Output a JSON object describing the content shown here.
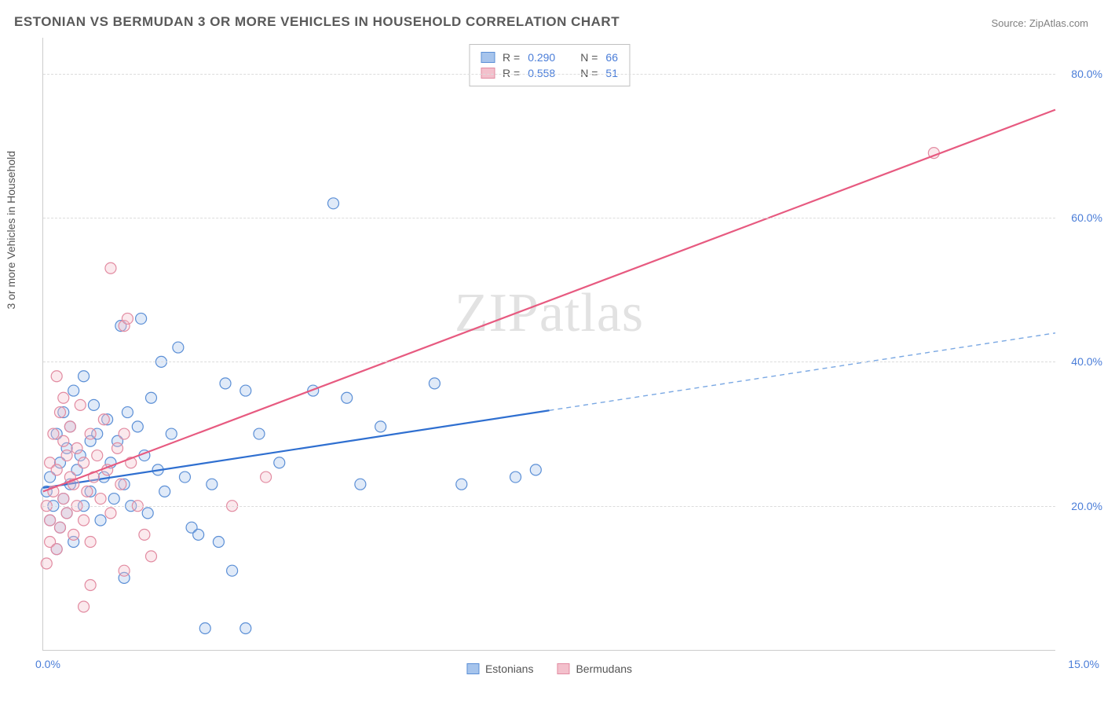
{
  "title": "ESTONIAN VS BERMUDAN 3 OR MORE VEHICLES IN HOUSEHOLD CORRELATION CHART",
  "source_label": "Source: ZipAtlas.com",
  "y_axis_title": "3 or more Vehicles in Household",
  "watermark": "ZIPatlas",
  "chart": {
    "type": "scatter",
    "background_color": "#ffffff",
    "grid_color": "#dcdcdc",
    "axis_line_color": "#cccccc",
    "tick_label_color": "#4a7dd8",
    "tick_fontsize": 14,
    "xlim": [
      0,
      15
    ],
    "ylim": [
      0,
      85
    ],
    "x_ticks": [
      {
        "value": 0,
        "label": "0.0%"
      },
      {
        "value": 15,
        "label": "15.0%"
      }
    ],
    "y_ticks": [
      {
        "value": 20,
        "label": "20.0%"
      },
      {
        "value": 40,
        "label": "40.0%"
      },
      {
        "value": 60,
        "label": "60.0%"
      },
      {
        "value": 80,
        "label": "80.0%"
      }
    ],
    "marker_radius": 7,
    "marker_stroke_width": 1.2,
    "marker_fill_opacity": 0.35,
    "series": [
      {
        "id": "estonians",
        "label": "Estonians",
        "color_stroke": "#5b8fd6",
        "color_fill": "#a6c4ec",
        "R": "0.290",
        "N": "66",
        "regression": {
          "x1": 0,
          "y1": 22.5,
          "x2": 15,
          "y2": 44.0,
          "solid_until_x": 7.5,
          "solid_color": "#2f6fd0",
          "solid_width": 2.2,
          "dash_color": "#7aa8e3",
          "dash_width": 1.4,
          "dash_pattern": "6,5"
        },
        "points": [
          [
            0.05,
            22
          ],
          [
            0.1,
            18
          ],
          [
            0.1,
            24
          ],
          [
            0.15,
            20
          ],
          [
            0.2,
            30
          ],
          [
            0.2,
            14
          ],
          [
            0.25,
            26
          ],
          [
            0.25,
            17
          ],
          [
            0.3,
            33
          ],
          [
            0.3,
            21
          ],
          [
            0.35,
            19
          ],
          [
            0.35,
            28
          ],
          [
            0.4,
            31
          ],
          [
            0.4,
            23
          ],
          [
            0.45,
            15
          ],
          [
            0.45,
            36
          ],
          [
            0.5,
            25
          ],
          [
            0.55,
            27
          ],
          [
            0.6,
            20
          ],
          [
            0.6,
            38
          ],
          [
            0.7,
            29
          ],
          [
            0.7,
            22
          ],
          [
            0.75,
            34
          ],
          [
            0.8,
            30
          ],
          [
            0.85,
            18
          ],
          [
            0.9,
            24
          ],
          [
            0.95,
            32
          ],
          [
            1.0,
            26
          ],
          [
            1.05,
            21
          ],
          [
            1.1,
            29
          ],
          [
            1.15,
            45
          ],
          [
            1.2,
            23
          ],
          [
            1.2,
            10
          ],
          [
            1.25,
            33
          ],
          [
            1.3,
            20
          ],
          [
            1.4,
            31
          ],
          [
            1.45,
            46
          ],
          [
            1.5,
            27
          ],
          [
            1.55,
            19
          ],
          [
            1.6,
            35
          ],
          [
            1.7,
            25
          ],
          [
            1.75,
            40
          ],
          [
            1.8,
            22
          ],
          [
            1.9,
            30
          ],
          [
            2.0,
            42
          ],
          [
            2.1,
            24
          ],
          [
            2.2,
            17
          ],
          [
            2.3,
            16
          ],
          [
            2.4,
            3
          ],
          [
            2.5,
            23
          ],
          [
            2.6,
            15
          ],
          [
            2.7,
            37
          ],
          [
            2.8,
            11
          ],
          [
            3.0,
            3
          ],
          [
            3.0,
            36
          ],
          [
            3.2,
            30
          ],
          [
            3.5,
            26
          ],
          [
            4.0,
            36
          ],
          [
            4.3,
            62
          ],
          [
            4.5,
            35
          ],
          [
            4.7,
            23
          ],
          [
            5.0,
            31
          ],
          [
            5.8,
            37
          ],
          [
            6.2,
            23
          ],
          [
            7.0,
            24
          ],
          [
            7.3,
            25
          ]
        ]
      },
      {
        "id": "bermudans",
        "label": "Bermudans",
        "color_stroke": "#e28ba1",
        "color_fill": "#f3c0cc",
        "R": "0.558",
        "N": "51",
        "regression": {
          "x1": 0,
          "y1": 22.0,
          "x2": 15,
          "y2": 75.0,
          "solid_until_x": 15,
          "solid_color": "#e75a80",
          "solid_width": 2.2,
          "dash_color": "#e75a80",
          "dash_width": 0,
          "dash_pattern": ""
        },
        "points": [
          [
            0.05,
            12
          ],
          [
            0.05,
            20
          ],
          [
            0.1,
            15
          ],
          [
            0.1,
            26
          ],
          [
            0.1,
            18
          ],
          [
            0.15,
            30
          ],
          [
            0.15,
            22
          ],
          [
            0.2,
            38
          ],
          [
            0.2,
            14
          ],
          [
            0.2,
            25
          ],
          [
            0.25,
            33
          ],
          [
            0.25,
            17
          ],
          [
            0.3,
            29
          ],
          [
            0.3,
            21
          ],
          [
            0.3,
            35
          ],
          [
            0.35,
            19
          ],
          [
            0.35,
            27
          ],
          [
            0.4,
            24
          ],
          [
            0.4,
            31
          ],
          [
            0.45,
            16
          ],
          [
            0.45,
            23
          ],
          [
            0.5,
            28
          ],
          [
            0.5,
            20
          ],
          [
            0.55,
            34
          ],
          [
            0.6,
            26
          ],
          [
            0.6,
            18
          ],
          [
            0.65,
            22
          ],
          [
            0.7,
            30
          ],
          [
            0.7,
            15
          ],
          [
            0.75,
            24
          ],
          [
            0.8,
            27
          ],
          [
            0.85,
            21
          ],
          [
            0.9,
            32
          ],
          [
            0.95,
            25
          ],
          [
            1.0,
            19
          ],
          [
            1.0,
            53
          ],
          [
            1.1,
            28
          ],
          [
            1.15,
            23
          ],
          [
            1.2,
            30
          ],
          [
            1.2,
            45
          ],
          [
            1.25,
            46
          ],
          [
            1.3,
            26
          ],
          [
            1.4,
            20
          ],
          [
            1.5,
            16
          ],
          [
            1.6,
            13
          ],
          [
            0.6,
            6
          ],
          [
            0.7,
            9
          ],
          [
            1.2,
            11
          ],
          [
            2.8,
            20
          ],
          [
            3.3,
            24
          ],
          [
            13.2,
            69
          ]
        ]
      }
    ]
  },
  "legend_top": {
    "R_label": "R =",
    "N_label": "N ="
  },
  "bottom_legend": {
    "items": [
      "estonians",
      "bermudans"
    ]
  }
}
